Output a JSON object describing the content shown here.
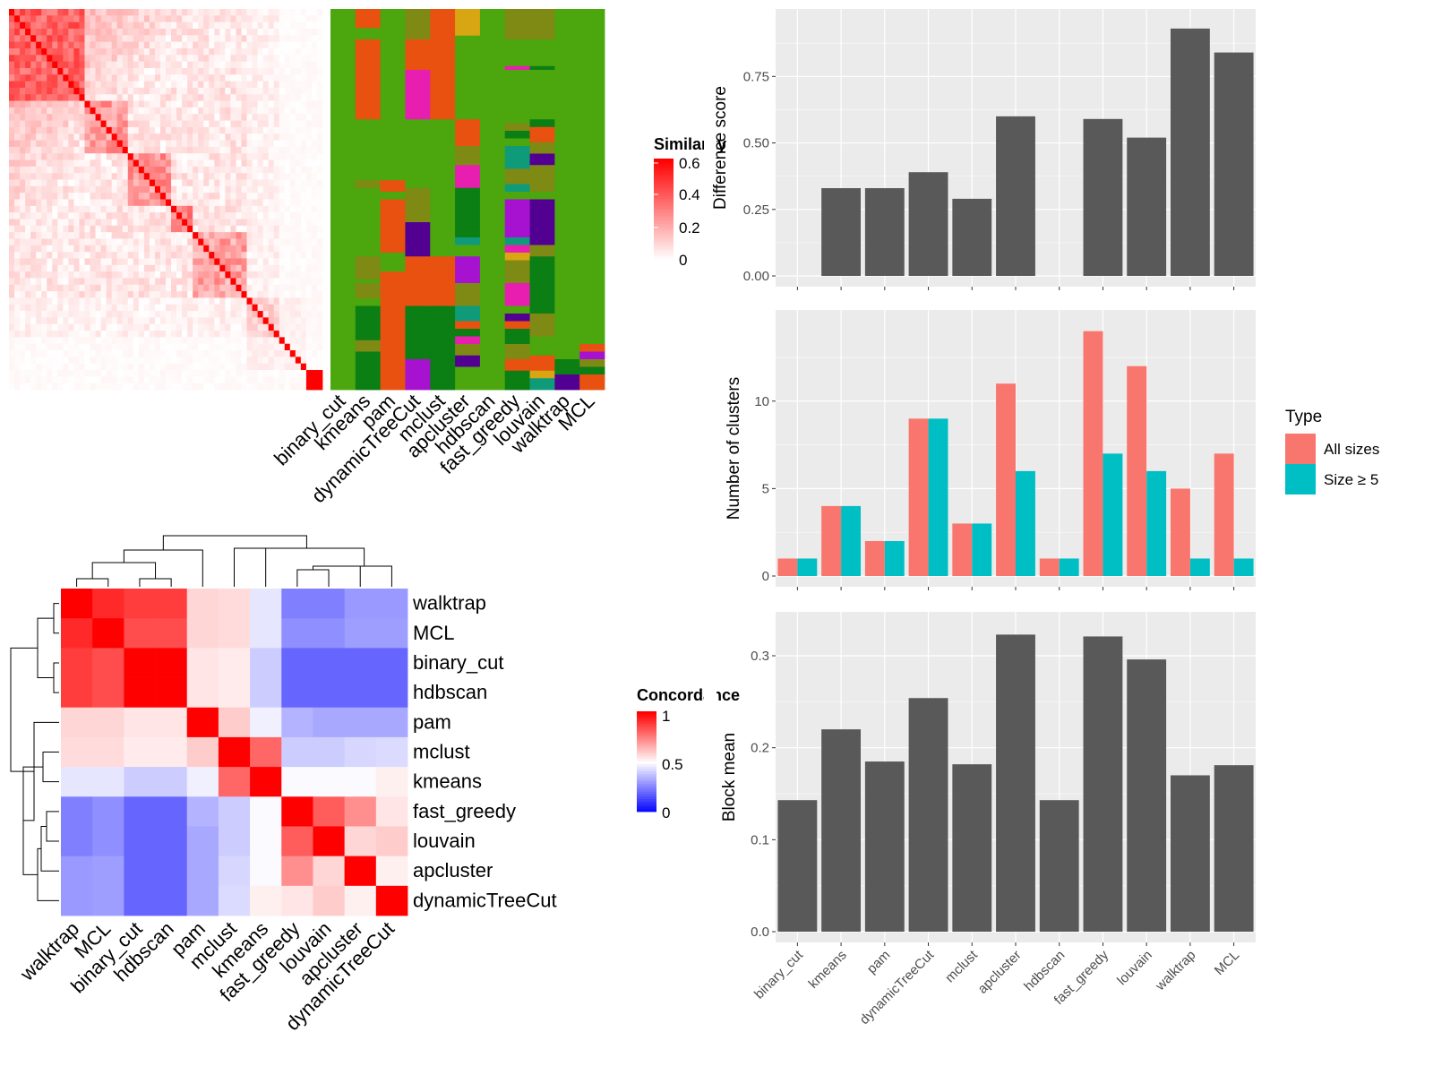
{
  "methods": [
    "binary_cut",
    "kmeans",
    "pam",
    "dynamicTreeCut",
    "mclust",
    "apcluster",
    "hdbscan",
    "fast_greedy",
    "louvain",
    "walktrap",
    "MCL"
  ],
  "similarity_legend": {
    "title": "Similarity",
    "ticks": [
      "0.6",
      "0.4",
      "0.2",
      "0"
    ]
  },
  "concordance_legend": {
    "title": "Concordance",
    "ticks": [
      "1",
      "0.5",
      "0"
    ]
  },
  "chart_data": [
    {
      "type": "heatmap",
      "name": "similarity matrix with cluster assignments",
      "columns": [
        "binary_cut",
        "kmeans",
        "pam",
        "dynamicTreeCut",
        "mclust",
        "apcluster",
        "hdbscan",
        "fast_greedy",
        "louvain",
        "walktrap",
        "MCL"
      ]
    },
    {
      "type": "heatmap",
      "name": "concordance",
      "rows": [
        "walktrap",
        "MCL",
        "binary_cut",
        "hdbscan",
        "pam",
        "mclust",
        "kmeans",
        "fast_greedy",
        "louvain",
        "apcluster",
        "dynamicTreeCut"
      ],
      "columns": [
        "walktrap",
        "MCL",
        "binary_cut",
        "hdbscan",
        "pam",
        "mclust",
        "kmeans",
        "fast_greedy",
        "louvain",
        "apcluster",
        "dynamicTreeCut"
      ],
      "values": [
        [
          1.0,
          0.92,
          0.88,
          0.88,
          0.58,
          0.57,
          0.45,
          0.25,
          0.25,
          0.3,
          0.3
        ],
        [
          0.92,
          1.0,
          0.85,
          0.85,
          0.58,
          0.57,
          0.45,
          0.28,
          0.28,
          0.31,
          0.31
        ],
        [
          0.88,
          0.85,
          1.0,
          1.0,
          0.55,
          0.54,
          0.4,
          0.2,
          0.2,
          0.2,
          0.2
        ],
        [
          0.88,
          0.85,
          1.0,
          1.0,
          0.55,
          0.54,
          0.4,
          0.2,
          0.2,
          0.2,
          0.2
        ],
        [
          0.58,
          0.58,
          0.55,
          0.55,
          1.0,
          0.6,
          0.47,
          0.35,
          0.33,
          0.33,
          0.33
        ],
        [
          0.57,
          0.57,
          0.54,
          0.54,
          0.6,
          1.0,
          0.8,
          0.4,
          0.4,
          0.42,
          0.43
        ],
        [
          0.45,
          0.45,
          0.4,
          0.4,
          0.47,
          0.8,
          1.0,
          0.49,
          0.49,
          0.49,
          0.53
        ],
        [
          0.25,
          0.28,
          0.2,
          0.2,
          0.35,
          0.4,
          0.49,
          1.0,
          0.82,
          0.72,
          0.55
        ],
        [
          0.25,
          0.28,
          0.2,
          0.2,
          0.33,
          0.4,
          0.49,
          0.82,
          1.0,
          0.58,
          0.6
        ],
        [
          0.3,
          0.31,
          0.2,
          0.2,
          0.33,
          0.42,
          0.49,
          0.72,
          0.58,
          1.0,
          0.53
        ],
        [
          0.3,
          0.31,
          0.2,
          0.2,
          0.33,
          0.43,
          0.53,
          0.55,
          0.6,
          0.53,
          1.0
        ]
      ]
    },
    {
      "type": "bar",
      "categories": [
        "binary_cut",
        "kmeans",
        "pam",
        "dynamicTreeCut",
        "mclust",
        "apcluster",
        "hdbscan",
        "fast_greedy",
        "louvain",
        "walktrap",
        "MCL"
      ],
      "values": [
        0,
        0.33,
        0.33,
        0.39,
        0.29,
        0.6,
        0,
        0.59,
        0.52,
        0.93,
        0.84
      ],
      "ylabel": "Difference score",
      "yticks": [
        "0.00",
        "0.25",
        "0.50",
        "0.75"
      ],
      "ylim": [
        0,
        0.97
      ]
    },
    {
      "type": "bar",
      "categories": [
        "binary_cut",
        "kmeans",
        "pam",
        "dynamicTreeCut",
        "mclust",
        "apcluster",
        "hdbscan",
        "fast_greedy",
        "louvain",
        "walktrap",
        "MCL"
      ],
      "series": [
        {
          "name": "All sizes",
          "values": [
            1,
            4,
            2,
            9,
            3,
            11,
            1,
            14,
            12,
            5,
            7
          ],
          "color": "#F8766D"
        },
        {
          "name": "Size ≥ 5",
          "values": [
            1,
            4,
            2,
            9,
            3,
            6,
            1,
            7,
            6,
            1,
            1
          ],
          "color": "#00BFC4"
        }
      ],
      "ylabel": "Number of clusters",
      "yticks": [
        "0",
        "5",
        "10"
      ],
      "ylim": [
        0,
        14.7
      ],
      "legend": {
        "title": "Type",
        "position": "right"
      }
    },
    {
      "type": "bar",
      "categories": [
        "binary_cut",
        "kmeans",
        "pam",
        "dynamicTreeCut",
        "mclust",
        "apcluster",
        "hdbscan",
        "fast_greedy",
        "louvain",
        "walktrap",
        "MCL"
      ],
      "values": [
        0.143,
        0.22,
        0.185,
        0.254,
        0.182,
        0.323,
        0.143,
        0.321,
        0.296,
        0.17,
        0.181
      ],
      "ylabel": "Block mean",
      "yticks": [
        "0.0",
        "0.1",
        "0.2",
        "0.3"
      ],
      "ylim": [
        0,
        0.338
      ]
    }
  ]
}
